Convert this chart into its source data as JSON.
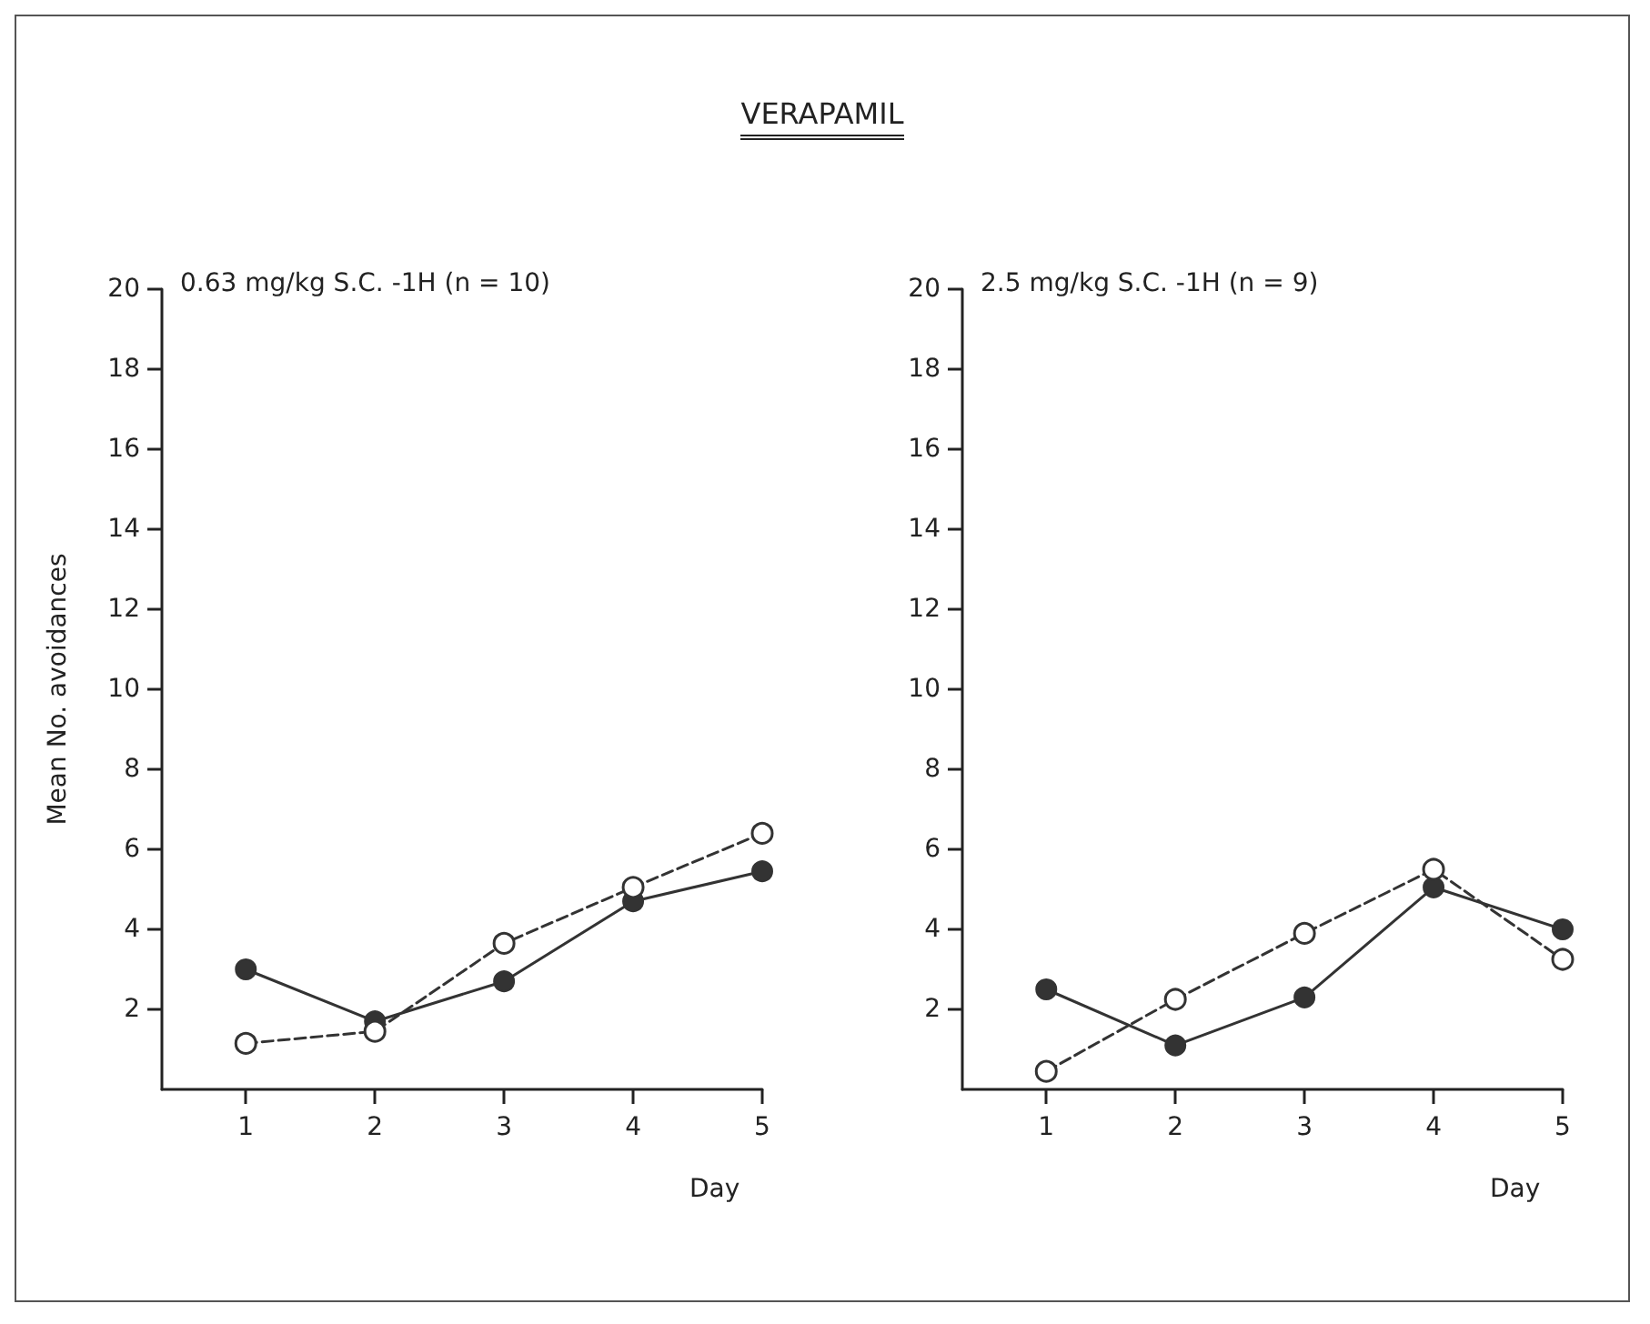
{
  "chart_data": [
    {
      "type": "line",
      "title": "VERAPAMIL",
      "xlabel": "Day",
      "ylabel": "Mean No. avoidances",
      "annotations": [
        "0.63 mg/kg S.C. -1H (n = 10)"
      ],
      "x": [
        1,
        2,
        3,
        4,
        5
      ],
      "xlim": [
        0.35,
        5
      ],
      "xticks": [
        1,
        2,
        3,
        4,
        5
      ],
      "ylim": [
        0,
        20
      ],
      "yticks": [
        2,
        4,
        6,
        8,
        10,
        12,
        14,
        16,
        18,
        20
      ],
      "marker": "circle",
      "grid": false,
      "series": [
        {
          "color": "#333333",
          "line_style": "solid",
          "values": [
            3.0,
            1.7,
            2.7,
            4.7,
            5.45
          ]
        },
        {
          "color": "#333333",
          "line_style": "dashed",
          "values": [
            1.15,
            1.45,
            3.65,
            5.05,
            6.4
          ]
        }
      ]
    },
    {
      "type": "line",
      "xlabel": "Day",
      "annotations": [
        "2.5 mg/kg S.C. -1H (n = 9)"
      ],
      "x": [
        1,
        2,
        3,
        4,
        5
      ],
      "xlim": [
        0.35,
        5
      ],
      "xticks": [
        1,
        2,
        3,
        4,
        5
      ],
      "ylim": [
        0,
        20
      ],
      "yticks": [
        2,
        4,
        6,
        8,
        10,
        12,
        14,
        16,
        18,
        20
      ],
      "marker": "circle",
      "grid": false,
      "series": [
        {
          "color": "#333333",
          "line_style": "solid",
          "values": [
            2.5,
            1.1,
            2.3,
            5.05,
            4.0
          ]
        },
        {
          "color": "#333333",
          "line_style": "dashed",
          "values": [
            0.45,
            2.25,
            3.9,
            5.5,
            3.25
          ]
        }
      ]
    }
  ]
}
